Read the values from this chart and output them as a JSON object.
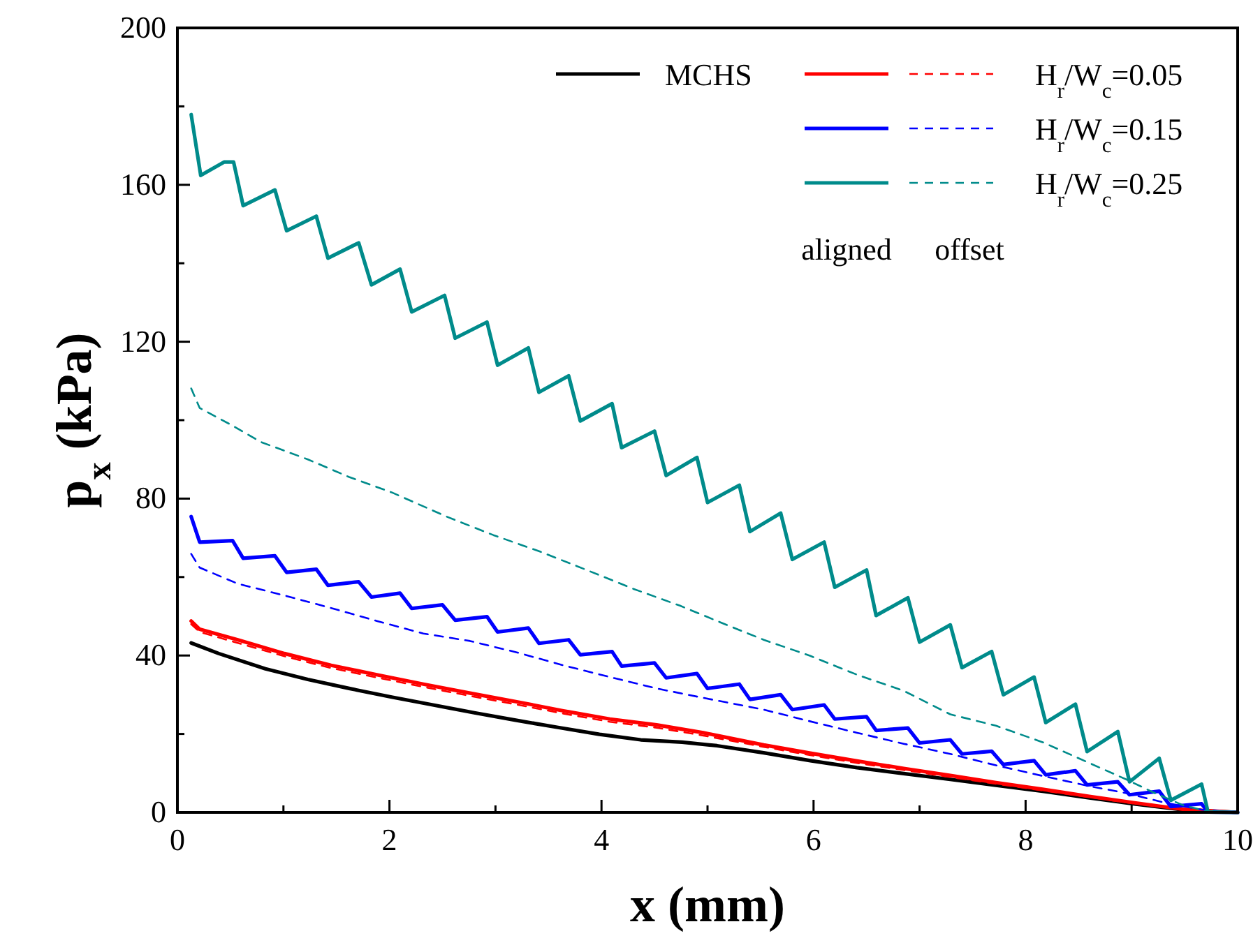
{
  "chart_data": {
    "type": "line",
    "xlabel": "x (mm)",
    "ylabel": "p$_{x}$ (kPa)",
    "xlim": [
      0,
      10
    ],
    "xticks": [
      0,
      2,
      4,
      6,
      8,
      10
    ],
    "ylim": [
      0,
      200
    ],
    "yticks": [
      0,
      40,
      80,
      120,
      160,
      200
    ],
    "grid": false,
    "legend": "top right",
    "marker": "none",
    "annotations": [
      "aligned",
      "offset"
    ],
    "series": [
      {
        "name": "MCHS",
        "color": "#000000",
        "line_style": "solid",
        "x": [
          0.13,
          0.39,
          0.83,
          1.23,
          1.62,
          2.02,
          2.41,
          2.8,
          3.19,
          3.58,
          3.98,
          4.37,
          4.76,
          5.09,
          5.53,
          5.97,
          6.41,
          6.85,
          7.29,
          7.72,
          8.16,
          8.6,
          9.04,
          9.48,
          10
        ],
        "values": [
          43.2,
          40.5,
          36.6,
          33.9,
          31.6,
          29.4,
          27.4,
          25.4,
          23.5,
          21.7,
          19.9,
          18.5,
          17.9,
          17.0,
          15.2,
          13.2,
          11.4,
          9.9,
          8.4,
          6.9,
          5.4,
          3.7,
          2.1,
          0.7,
          0
        ]
      },
      {
        "name": "H$_{r}$/W$_{c}$=0.05",
        "color": "#ff0000",
        "line_style": "solid",
        "x": [
          0.13,
          0.21,
          0.57,
          1.01,
          1.45,
          1.88,
          2.32,
          2.76,
          3.2,
          3.64,
          4.08,
          4.52,
          4.96,
          5.09,
          5.53,
          5.97,
          6.41,
          6.85,
          7.29,
          7.72,
          8.16,
          8.6,
          9.04,
          9.48,
          10
        ],
        "values": [
          48.8,
          46.7,
          44.0,
          40.5,
          37.5,
          35.1,
          32.7,
          30.4,
          28.2,
          25.9,
          23.8,
          22.3,
          20.3,
          19.6,
          17.2,
          15.1,
          13.1,
          11.2,
          9.4,
          7.6,
          5.9,
          4.1,
          2.4,
          0.8,
          0
        ]
      },
      {
        "color": "#ff0000",
        "line_style": "dashed",
        "x": [
          0.13,
          0.21,
          0.57,
          1.01,
          1.45,
          1.88,
          2.32,
          2.76,
          3.2,
          3.64,
          4.08,
          4.52,
          4.96,
          5.53,
          5.97,
          6.41,
          6.85,
          7.29,
          7.72,
          8.16,
          8.6,
          9.04,
          9.48,
          10
        ],
        "values": [
          48.0,
          46.0,
          43.2,
          39.8,
          36.8,
          34.4,
          32.0,
          29.7,
          27.5,
          25.2,
          23.1,
          21.6,
          19.6,
          16.7,
          14.6,
          12.6,
          10.8,
          9.0,
          7.3,
          5.6,
          3.9,
          2.2,
          0.7,
          0
        ]
      },
      {
        "name": "H$_{r}$/W$_{c}$=0.15",
        "color": "#0000ff",
        "line_style": "solid",
        "x": [
          0.13,
          0.21,
          0.52,
          0.62,
          0.92,
          1.03,
          1.31,
          1.42,
          1.71,
          1.83,
          2.1,
          2.21,
          2.5,
          2.62,
          2.92,
          3.02,
          3.31,
          3.41,
          3.69,
          3.8,
          4.1,
          4.19,
          4.5,
          4.61,
          4.9,
          5.0,
          5.3,
          5.4,
          5.69,
          5.8,
          6.1,
          6.2,
          6.5,
          6.59,
          6.89,
          7.0,
          7.29,
          7.4,
          7.68,
          7.79,
          8.08,
          8.19,
          8.47,
          8.58,
          8.87,
          8.98,
          9.26,
          9.37,
          9.66,
          9.72,
          10
        ],
        "values": [
          75.4,
          68.9,
          69.3,
          64.8,
          65.4,
          61.2,
          62.0,
          57.9,
          58.8,
          54.9,
          55.9,
          52.0,
          52.9,
          49.0,
          49.9,
          46.0,
          47.0,
          43.1,
          44.0,
          40.2,
          41.0,
          37.3,
          38.1,
          34.3,
          35.4,
          31.6,
          32.7,
          28.8,
          30.0,
          26.2,
          27.4,
          23.8,
          24.4,
          20.9,
          21.5,
          17.7,
          18.5,
          14.9,
          15.6,
          12.2,
          13.2,
          9.6,
          10.6,
          7.0,
          7.8,
          4.5,
          5.4,
          1.5,
          2.2,
          0.1,
          0
        ]
      },
      {
        "color": "#0000ff",
        "line_style": "dashed",
        "x": [
          0.13,
          0.21,
          0.57,
          1.01,
          1.45,
          1.88,
          2.32,
          2.76,
          3.2,
          3.64,
          4.08,
          4.52,
          4.96,
          5.53,
          5.97,
          6.41,
          6.85,
          7.29,
          7.72,
          8.16,
          8.6,
          8.95,
          9.31,
          9.66,
          10
        ],
        "values": [
          65.9,
          62.4,
          58.3,
          55.3,
          52.1,
          48.8,
          45.6,
          43.7,
          40.8,
          37.5,
          34.5,
          31.6,
          29.2,
          26.2,
          23.2,
          20.3,
          17.5,
          14.9,
          12.0,
          9.3,
          6.7,
          4.9,
          2.5,
          0.7,
          0
        ]
      },
      {
        "name": "H$_{r}$/W$_{c}$=0.25",
        "color": "#008b8b",
        "line_style": "solid",
        "x": [
          0.13,
          0.22,
          0.44,
          0.53,
          0.62,
          0.92,
          1.03,
          1.31,
          1.42,
          1.71,
          1.83,
          2.1,
          2.21,
          2.52,
          2.62,
          2.92,
          3.02,
          3.31,
          3.41,
          3.69,
          3.8,
          4.1,
          4.19,
          4.5,
          4.61,
          4.9,
          5.0,
          5.3,
          5.4,
          5.69,
          5.8,
          6.1,
          6.2,
          6.5,
          6.59,
          6.89,
          7.0,
          7.29,
          7.4,
          7.68,
          7.79,
          8.08,
          8.19,
          8.47,
          8.58,
          8.87,
          8.98,
          9.26,
          9.37,
          9.66,
          9.72,
          10
        ],
        "values": [
          177.9,
          162.4,
          165.8,
          165.8,
          154.7,
          158.7,
          148.3,
          152.0,
          141.3,
          145.2,
          134.5,
          138.5,
          127.6,
          131.8,
          120.9,
          125.0,
          114.0,
          118.4,
          107.1,
          111.3,
          99.8,
          104.2,
          93.0,
          97.2,
          85.9,
          90.5,
          79.0,
          83.4,
          71.6,
          76.3,
          64.5,
          68.9,
          57.4,
          61.8,
          50.2,
          54.7,
          43.4,
          47.8,
          36.9,
          41.0,
          30.0,
          34.5,
          22.9,
          27.6,
          15.5,
          20.6,
          7.8,
          13.8,
          3.1,
          7.2,
          0.1,
          0
        ]
      },
      {
        "color": "#008b8b",
        "line_style": "dashed",
        "x": [
          0.13,
          0.21,
          0.52,
          0.79,
          1.23,
          1.62,
          2.02,
          2.54,
          2.98,
          3.42,
          3.86,
          4.3,
          4.74,
          5.09,
          5.53,
          5.97,
          6.41,
          6.85,
          7.29,
          7.72,
          8.16,
          8.6,
          8.95,
          9.22,
          9.48,
          9.75,
          10
        ],
        "values": [
          108.1,
          103.1,
          98.6,
          94.4,
          90.0,
          85.5,
          81.6,
          75.4,
          70.7,
          66.5,
          61.8,
          57.0,
          52.7,
          48.8,
          44.0,
          39.9,
          35.1,
          31.0,
          25.0,
          22.1,
          17.9,
          12.6,
          8.4,
          4.9,
          1.9,
          0,
          0
        ]
      }
    ]
  }
}
